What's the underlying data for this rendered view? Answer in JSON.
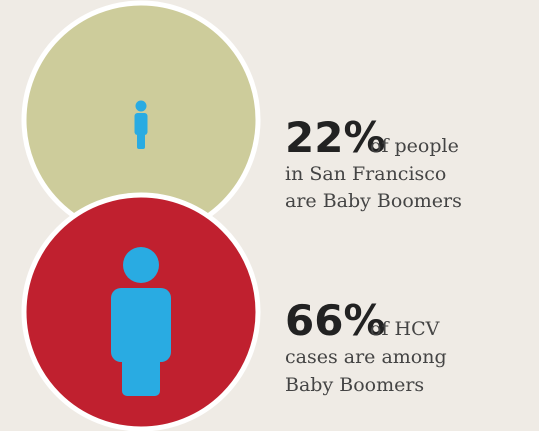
{
  "items": [
    {
      "percent": "22%",
      "lines": [
        "of people",
        "in San Francisco",
        "are Baby Boomers"
      ]
    },
    {
      "percent": "66%",
      "lines": [
        "of HCV",
        "cases are among",
        "Baby Boomers"
      ]
    }
  ]
}
